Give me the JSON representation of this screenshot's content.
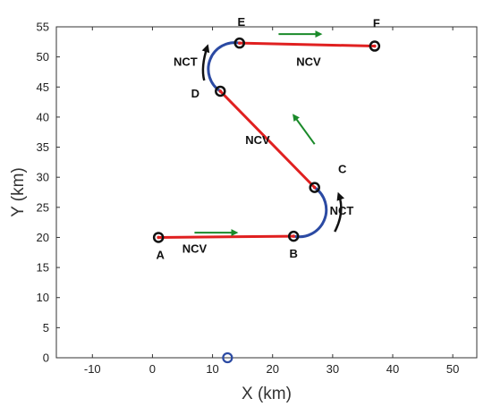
{
  "chart_data": {
    "type": "line",
    "title": "",
    "xlabel": "X (km)",
    "ylabel": "Y (km)",
    "xlim": [
      -16,
      54
    ],
    "ylim": [
      0,
      55
    ],
    "xticks": [
      -10,
      0,
      10,
      20,
      30,
      40,
      50
    ],
    "yticks": [
      0,
      5,
      10,
      15,
      20,
      25,
      30,
      35,
      40,
      45,
      50,
      55
    ],
    "grid": false,
    "colors": {
      "ncv_segment": "#e02020",
      "nct_segment": "#2b4aa3",
      "waypoint_edge": "#111111",
      "motion_arrow": "#1a8a2a",
      "turn_arrow": "#111111",
      "origin_marker": "#2b4aa3"
    },
    "waypoints": [
      {
        "label": "A",
        "x": 1,
        "y": 20
      },
      {
        "label": "B",
        "x": 23.5,
        "y": 20.2
      },
      {
        "label": "C",
        "x": 27,
        "y": 28.3
      },
      {
        "label": "D",
        "x": 11.3,
        "y": 44.3
      },
      {
        "label": "E",
        "x": 14.5,
        "y": 52.3
      },
      {
        "label": "F",
        "x": 37,
        "y": 51.8
      }
    ],
    "segments": [
      {
        "type": "NCV",
        "from": "A",
        "to": "B"
      },
      {
        "type": "NCT",
        "from": "B",
        "to": "C"
      },
      {
        "type": "NCV",
        "from": "C",
        "to": "D"
      },
      {
        "type": "NCT",
        "from": "D",
        "to": "E"
      },
      {
        "type": "NCV",
        "from": "E",
        "to": "F"
      }
    ],
    "segment_labels": [
      {
        "text": "NCV",
        "x": 7,
        "y": 17.5
      },
      {
        "text": "NCT",
        "x": 31.5,
        "y": 23.8
      },
      {
        "text": "NCV",
        "x": 17.5,
        "y": 35.5
      },
      {
        "text": "NCT",
        "x": 5.5,
        "y": 48.5
      },
      {
        "text": "NCV",
        "x": 26,
        "y": 48.5
      }
    ],
    "motion_arrows": [
      {
        "x1": 7,
        "y1": 20.8,
        "x2": 14,
        "y2": 20.8
      },
      {
        "x1": 27,
        "y1": 35.5,
        "x2": 23.5,
        "y2": 40.3
      },
      {
        "x1": 21,
        "y1": 53.8,
        "x2": 28,
        "y2": 53.8
      }
    ],
    "origin_marker": {
      "x": 12.5,
      "y": 0
    }
  }
}
